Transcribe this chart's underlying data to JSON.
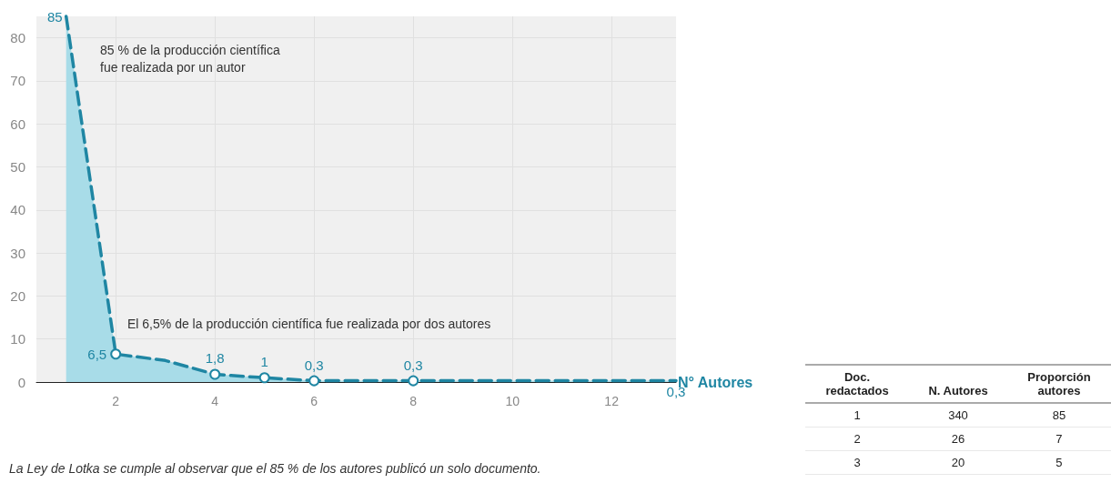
{
  "chart_data": [
    {
      "type": "area",
      "xlabel": "N° Autores",
      "x": [
        1,
        2,
        3,
        4,
        5,
        6,
        8,
        13.3
      ],
      "series": [
        {
          "color": "#1f86a3",
          "values": [
            85,
            6.5,
            5,
            1.8,
            1,
            0.3,
            0.3,
            0.3
          ],
          "value_labels": [
            "85",
            "6,5",
            null,
            "1,8",
            "1",
            "0,3",
            "0,3",
            "0,3"
          ]
        }
      ],
      "xlim": [
        0.4,
        13.3
      ],
      "xticks": [
        2,
        4,
        6,
        8,
        10,
        12
      ],
      "ylim": [
        0,
        85
      ],
      "yticks": [
        0,
        10,
        20,
        30,
        40,
        50,
        60,
        70,
        80
      ],
      "grid": true,
      "marker": "circle",
      "line_style": "dashed",
      "annotations": [
        "85 % de la producción científica\nfue realizada por un autor",
        "El 6,5% de la producción científica fue realizada por dos autores",
        "La Ley de Lotka se cumple al observar que el 85 % de los autores publicó un solo documento."
      ]
    },
    {
      "type": "other",
      "annotations": [
        "Doc.\nredactados",
        "N. Autores",
        "Proporción\nautores",
        "1",
        "340",
        "85",
        "2",
        "26",
        "7",
        "3",
        "20",
        "5"
      ]
    }
  ]
}
